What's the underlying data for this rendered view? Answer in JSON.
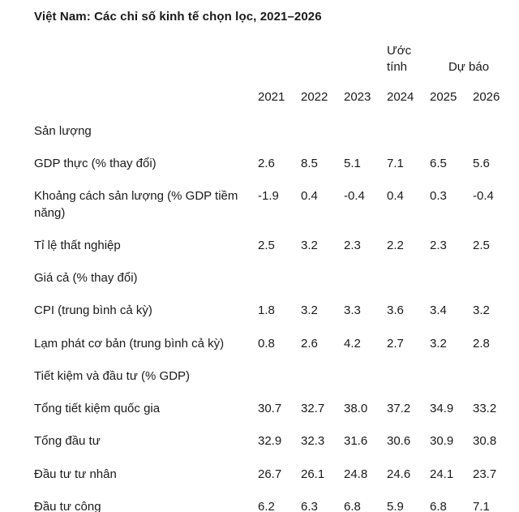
{
  "title": "Việt Nam: Các chỉ số kinh tế chọn lọc, 2021–2026",
  "table": {
    "estimate_label": "Ước tính",
    "forecast_label": "Dự báo",
    "years": [
      "2021",
      "2022",
      "2023",
      "2024",
      "2025",
      "2026"
    ],
    "rows": [
      {
        "label": "Sản lượng",
        "section": true
      },
      {
        "label": "GDP thực (% thay đổi)",
        "values": [
          "2.6",
          "8.5",
          "5.1",
          "7.1",
          "6.5",
          "5.6"
        ]
      },
      {
        "label": "Khoảng cách sản lượng (% GDP tiềm năng)",
        "values": [
          "-1.9",
          "0.4",
          "-0.4",
          "0.4",
          "0.3",
          "-0.4"
        ]
      },
      {
        "label": "Tỉ lệ thất nghiệp",
        "values": [
          "2.5",
          "3.2",
          "2.3",
          "2.2",
          "2.3",
          "2.5"
        ]
      },
      {
        "label": "Giá cả (% thay đổi)",
        "section": true
      },
      {
        "label": "CPI (trung bình cả kỳ)",
        "values": [
          "1.8",
          "3.2",
          "3.3",
          "3.6",
          "3.4",
          "3.2"
        ]
      },
      {
        "label": "Lạm phát cơ bản (trung bình cả kỳ)",
        "values": [
          "0.8",
          "2.6",
          "4.2",
          "2.7",
          "3.2",
          "2.8"
        ]
      },
      {
        "label": "Tiết kiệm và đầu tư (% GDP)",
        "section": true
      },
      {
        "label": "Tổng tiết kiệm quốc gia",
        "values": [
          "30.7",
          "32.7",
          "38.0",
          "37.2",
          "34.9",
          "33.2"
        ]
      },
      {
        "label": "Tổng đầu tư",
        "values": [
          "32.9",
          "32.3",
          "31.6",
          "30.6",
          "30.9",
          "30.8"
        ]
      },
      {
        "label": "Đầu tư tư nhân",
        "values": [
          "26.7",
          "26.1",
          "24.8",
          "24.6",
          "24.1",
          "23.7"
        ]
      },
      {
        "label": "Đầu tư công",
        "values": [
          "6.2",
          "6.3",
          "6.8",
          "5.9",
          "6.8",
          "7.1"
        ]
      }
    ]
  },
  "chart_data": {
    "type": "table",
    "title": "Việt Nam: Các chỉ số kinh tế chọn lọc, 2021–2026",
    "column_groups": [
      {
        "label": "Ước tính",
        "columns": [
          "2024"
        ]
      },
      {
        "label": "Dự báo",
        "columns": [
          "2025",
          "2026"
        ]
      }
    ],
    "categories": [
      "2021",
      "2022",
      "2023",
      "2024",
      "2025",
      "2026"
    ],
    "sections": [
      "Sản lượng",
      "Giá cả (% thay đổi)",
      "Tiết kiệm và đầu tư (% GDP)"
    ],
    "series": [
      {
        "name": "GDP thực (% thay đổi)",
        "values": [
          2.6,
          8.5,
          5.1,
          7.1,
          6.5,
          5.6
        ]
      },
      {
        "name": "Khoảng cách sản lượng (% GDP tiềm năng)",
        "values": [
          -1.9,
          0.4,
          -0.4,
          0.4,
          0.3,
          -0.4
        ]
      },
      {
        "name": "Tỉ lệ thất nghiệp",
        "values": [
          2.5,
          3.2,
          2.3,
          2.2,
          2.3,
          2.5
        ]
      },
      {
        "name": "CPI (trung bình cả kỳ)",
        "values": [
          1.8,
          3.2,
          3.3,
          3.6,
          3.4,
          3.2
        ]
      },
      {
        "name": "Lạm phát cơ bản (trung bình cả kỳ)",
        "values": [
          0.8,
          2.6,
          4.2,
          2.7,
          3.2,
          2.8
        ]
      },
      {
        "name": "Tổng tiết kiệm quốc gia",
        "values": [
          30.7,
          32.7,
          38.0,
          37.2,
          34.9,
          33.2
        ]
      },
      {
        "name": "Tổng đầu tư",
        "values": [
          32.9,
          32.3,
          31.6,
          30.6,
          30.9,
          30.8
        ]
      },
      {
        "name": "Đầu tư tư nhân",
        "values": [
          26.7,
          26.1,
          24.8,
          24.6,
          24.1,
          23.7
        ]
      },
      {
        "name": "Đầu tư công",
        "values": [
          6.2,
          6.3,
          6.8,
          5.9,
          6.8,
          7.1
        ]
      }
    ]
  }
}
